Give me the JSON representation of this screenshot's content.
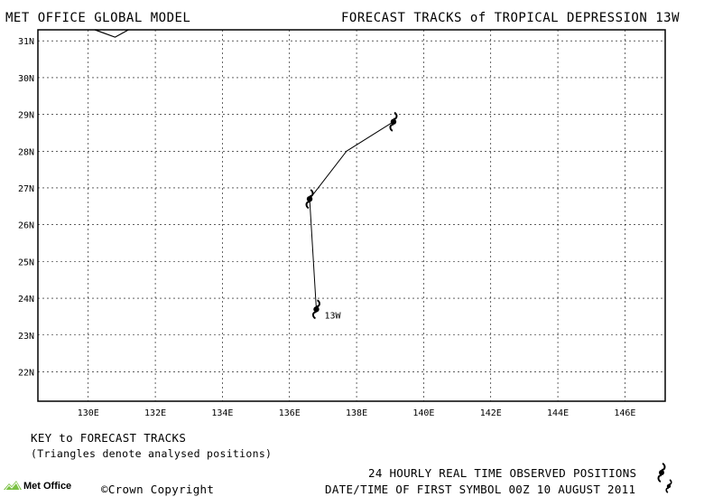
{
  "header": {
    "left_title": "MET OFFICE GLOBAL MODEL",
    "right_title": "FORECAST TRACKS of TROPICAL DEPRESSION 13W"
  },
  "map": {
    "lon_ticks": [
      "130E",
      "132E",
      "134E",
      "136E",
      "138E",
      "140E",
      "142E",
      "144E",
      "146E"
    ],
    "lat_ticks": [
      "31N",
      "30N",
      "29N",
      "28N",
      "27N",
      "26N",
      "25N",
      "24N",
      "23N",
      "22N"
    ],
    "lon_range": [
      128.5,
      147.2
    ],
    "lat_range": [
      21.2,
      31.3
    ],
    "storm_label": "13W",
    "track": [
      {
        "lon": 136.8,
        "lat": 23.7,
        "symbol": true
      },
      {
        "lon": 136.6,
        "lat": 26.7,
        "symbol": true
      },
      {
        "lon": 137.7,
        "lat": 28.0,
        "symbol": false
      },
      {
        "lon": 139.1,
        "lat": 28.8,
        "symbol": true
      }
    ],
    "coastline": [
      {
        "lon": 130.2,
        "lat": 31.3
      },
      {
        "lon": 130.8,
        "lat": 31.1
      },
      {
        "lon": 131.2,
        "lat": 31.3
      }
    ],
    "colors": {
      "track": "#000000",
      "grid": "#000000",
      "frame": "#000000"
    }
  },
  "key": {
    "title": "KEY to FORECAST TRACKS",
    "subtitle": "(Triangles denote analysed positions)"
  },
  "footer": {
    "observed_label": "24 HOURLY REAL TIME OBSERVED POSITIONS",
    "first_symbol_label": "DATE/TIME OF FIRST SYMBOL 00Z 10 AUGUST 2011",
    "copyright": "©Crown Copyright",
    "logo_text": "Met Office"
  }
}
